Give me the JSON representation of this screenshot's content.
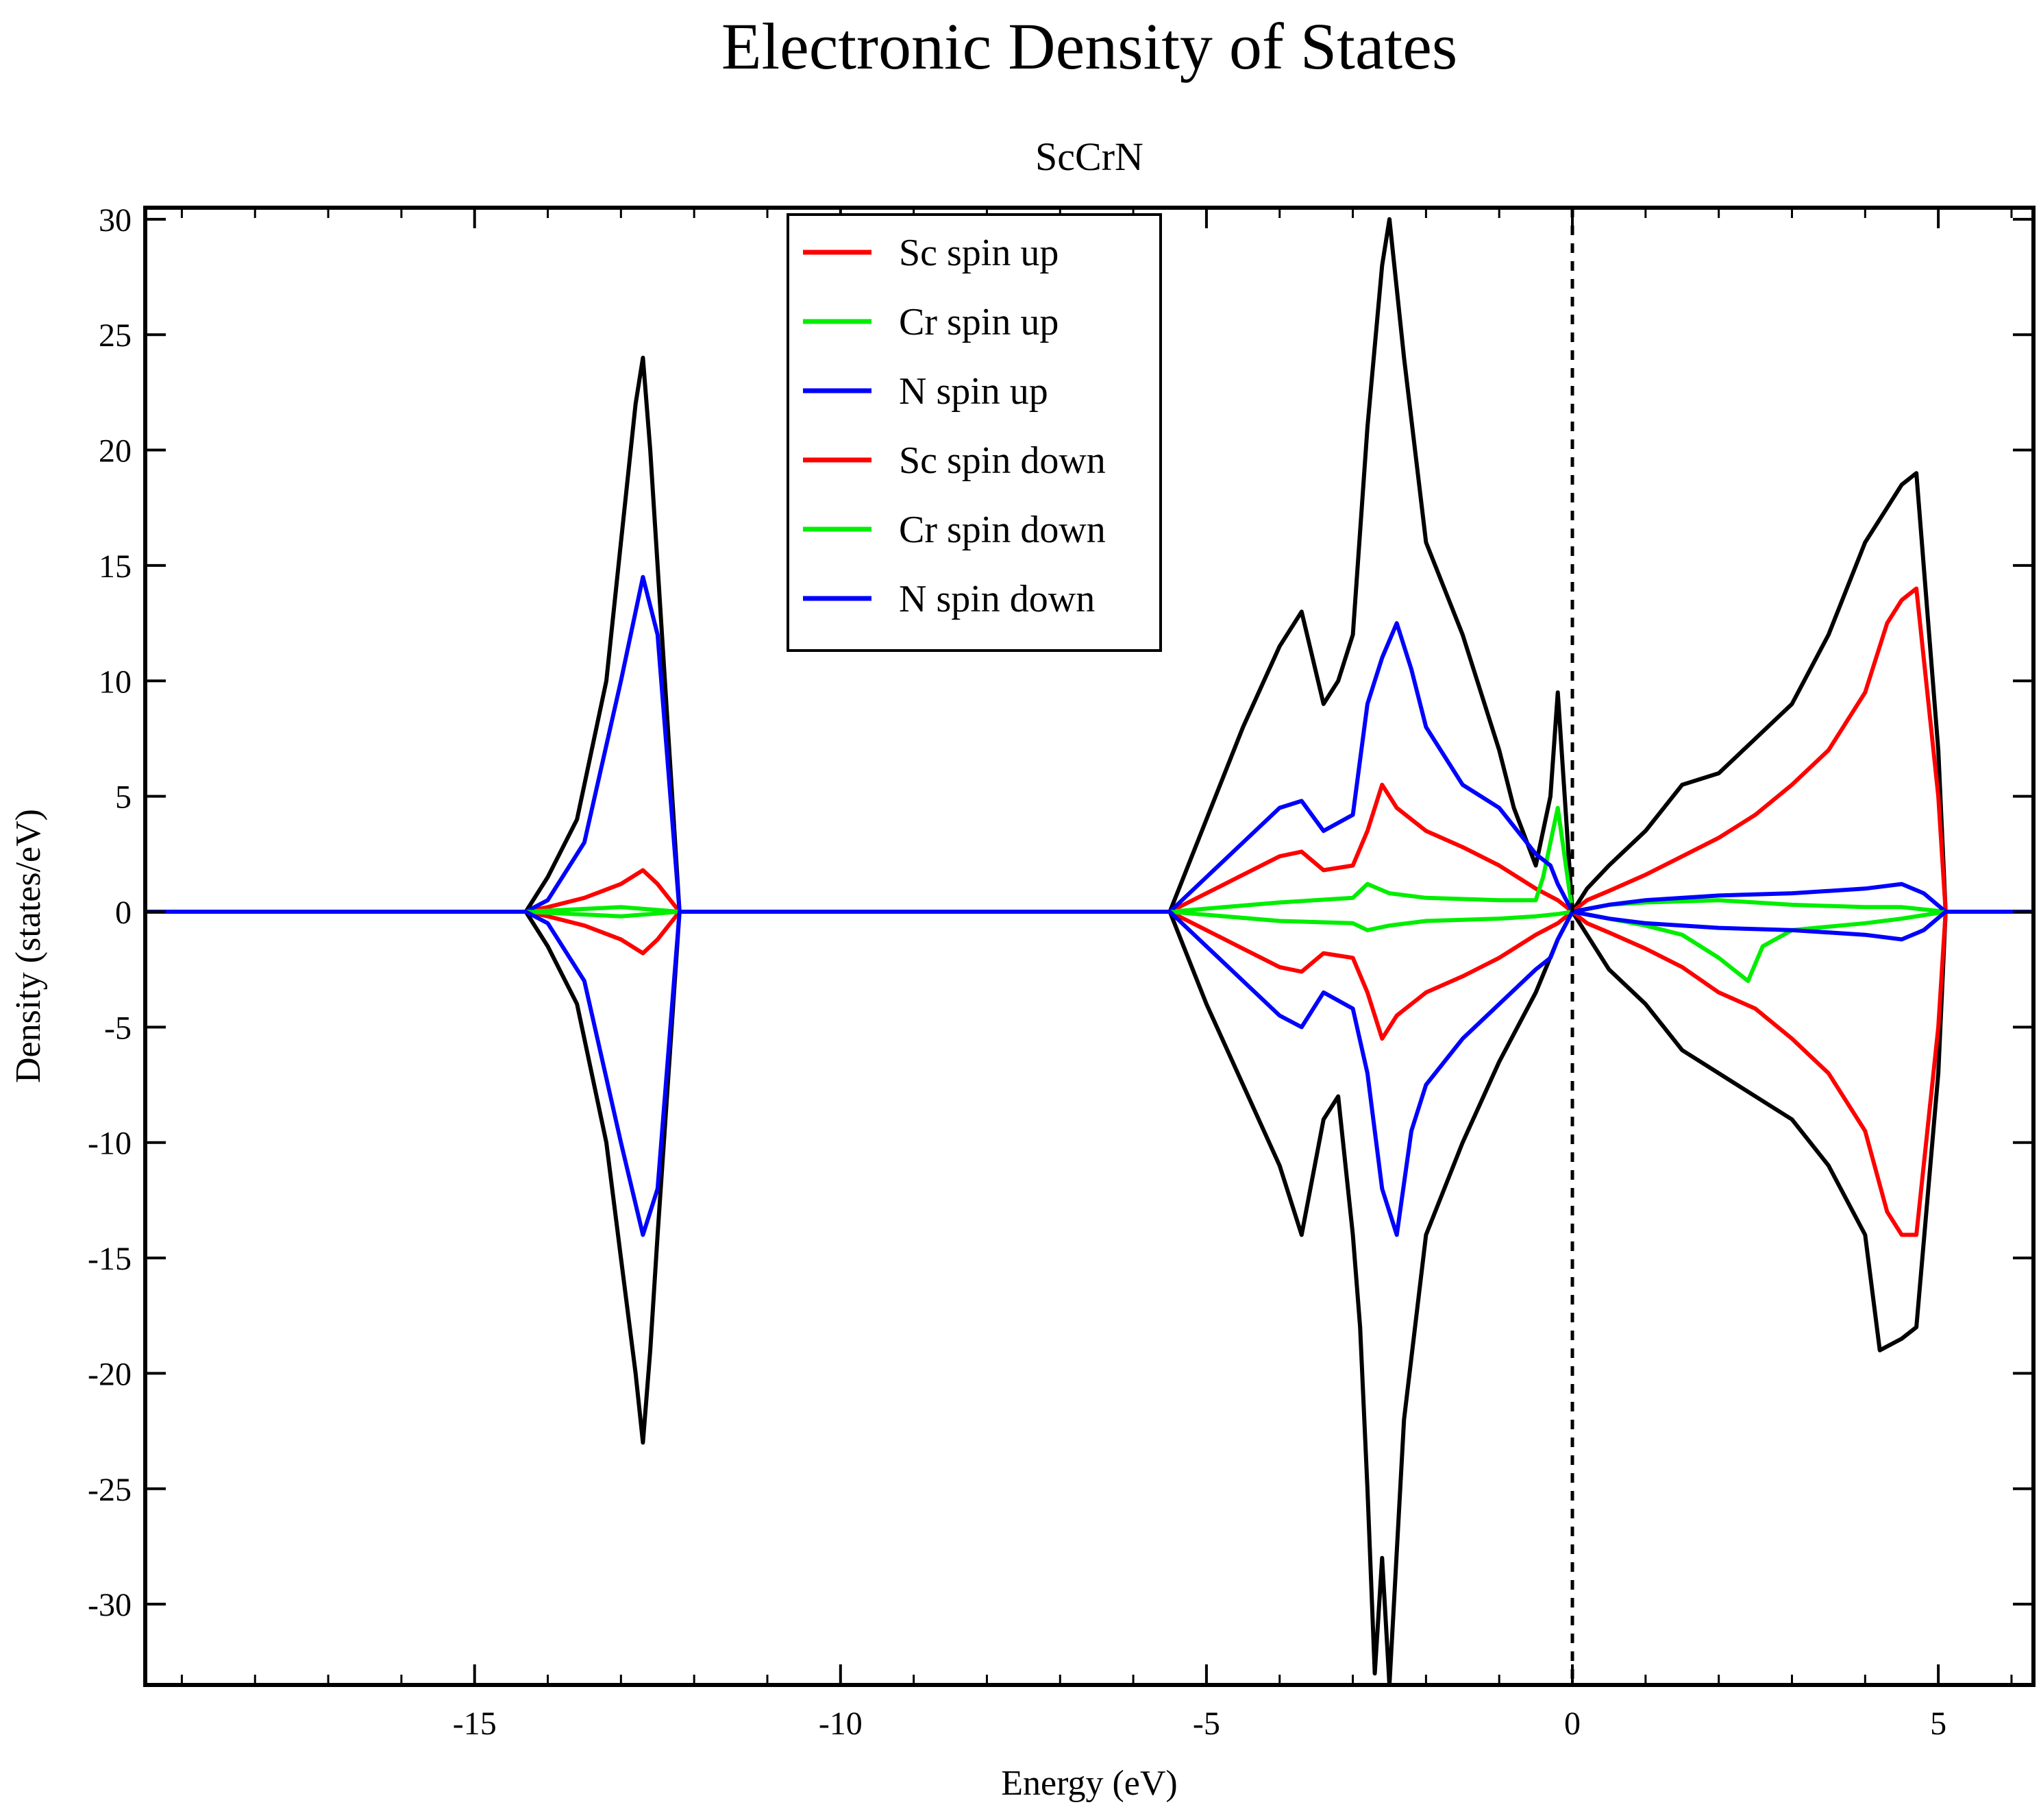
{
  "chart_data": {
    "type": "line",
    "title": "Electronic Density of States",
    "subtitle": "ScCrN",
    "xlabel": "Energy (eV)",
    "ylabel": "Density (states/eV)",
    "xlim": [
      -19.5,
      6.3
    ],
    "ylim": [
      -33.5,
      30.5
    ],
    "xticks": [
      -15,
      -10,
      -5,
      0,
      5
    ],
    "xtick_labels": [
      "-15",
      "-10",
      "-5",
      "0",
      "5"
    ],
    "yticks": [
      30,
      25,
      20,
      15,
      10,
      5,
      0,
      -5,
      -10,
      -15,
      -20,
      -25,
      -30
    ],
    "ytick_labels": [
      "30",
      "25",
      "20",
      "15",
      "10",
      "5",
      "0",
      "-5",
      "-10",
      "-15",
      "-20",
      "-25",
      "-30"
    ],
    "fermi_level": 0,
    "grid": false,
    "legend_position": "top-center",
    "total_color": "#000000",
    "series": [
      {
        "name": "Sc spin up",
        "color": "#ff0000",
        "x": [
          -19.5,
          -14.3,
          -14.0,
          -13.5,
          -13.0,
          -12.7,
          -12.5,
          -12.2,
          -5.5,
          -5.0,
          -4.5,
          -4.0,
          -3.7,
          -3.4,
          -3.0,
          -2.8,
          -2.6,
          -2.4,
          -2.0,
          -1.5,
          -1.0,
          -0.5,
          -0.2,
          0.0,
          0.2,
          0.5,
          1.0,
          1.5,
          2.0,
          2.5,
          3.0,
          3.5,
          4.0,
          4.3,
          4.5,
          4.7,
          5.0,
          5.1,
          6.3
        ],
        "values": [
          0,
          0,
          0.2,
          0.6,
          1.2,
          1.8,
          1.2,
          0,
          0,
          0.8,
          1.6,
          2.4,
          2.6,
          1.8,
          2.0,
          3.5,
          5.5,
          4.5,
          3.5,
          2.8,
          2.0,
          1.0,
          0.5,
          0,
          0.5,
          0.9,
          1.6,
          2.4,
          3.2,
          4.2,
          5.5,
          7.0,
          9.5,
          12.5,
          13.5,
          14.0,
          5.0,
          0,
          0
        ]
      },
      {
        "name": "Cr spin up",
        "color": "#00ee00",
        "x": [
          -19.5,
          -14.3,
          -13.0,
          -12.2,
          -5.5,
          -4.0,
          -3.0,
          -2.8,
          -2.5,
          -2.0,
          -1.0,
          -0.5,
          -0.4,
          -0.3,
          -0.2,
          0.0,
          0.5,
          1.0,
          2.0,
          2.5,
          3.0,
          4.0,
          4.5,
          5.1,
          6.3
        ],
        "values": [
          0,
          0,
          0.2,
          0,
          0,
          0.4,
          0.6,
          1.2,
          0.8,
          0.6,
          0.5,
          0.5,
          1.5,
          3.0,
          4.5,
          0,
          0.3,
          0.4,
          0.5,
          0.4,
          0.3,
          0.2,
          0.2,
          0,
          0
        ]
      },
      {
        "name": "N spin up",
        "color": "#0000ff",
        "x": [
          -19.5,
          -14.3,
          -14.0,
          -13.5,
          -13.0,
          -12.7,
          -12.5,
          -12.2,
          -5.5,
          -5.0,
          -4.5,
          -4.0,
          -3.7,
          -3.4,
          -3.0,
          -2.8,
          -2.6,
          -2.4,
          -2.2,
          -2.0,
          -1.5,
          -1.0,
          -0.5,
          -0.3,
          -0.2,
          0.0,
          0.5,
          1.0,
          2.0,
          3.0,
          4.0,
          4.5,
          4.8,
          5.1,
          6.3
        ],
        "values": [
          0,
          0,
          0.5,
          3.0,
          10.0,
          14.5,
          12.0,
          0,
          0,
          1.5,
          3.0,
          4.5,
          4.8,
          3.5,
          4.2,
          9.0,
          11.0,
          12.5,
          10.5,
          8.0,
          5.5,
          4.5,
          2.5,
          2.0,
          1.2,
          0,
          0.3,
          0.5,
          0.7,
          0.8,
          1.0,
          1.2,
          0.8,
          0,
          0
        ]
      },
      {
        "name": "Sc spin down",
        "color": "#ff0000",
        "x": [
          -19.5,
          -14.3,
          -14.0,
          -13.5,
          -13.0,
          -12.7,
          -12.5,
          -12.2,
          -5.5,
          -5.0,
          -4.5,
          -4.0,
          -3.7,
          -3.4,
          -3.0,
          -2.8,
          -2.6,
          -2.4,
          -2.0,
          -1.5,
          -1.0,
          -0.5,
          -0.2,
          0.0,
          0.2,
          0.5,
          1.0,
          1.5,
          2.0,
          2.5,
          3.0,
          3.5,
          4.0,
          4.3,
          4.5,
          4.7,
          5.0,
          5.1,
          6.3
        ],
        "values": [
          0,
          0,
          -0.2,
          -0.6,
          -1.2,
          -1.8,
          -1.2,
          0,
          0,
          -0.8,
          -1.6,
          -2.4,
          -2.6,
          -1.8,
          -2.0,
          -3.5,
          -5.5,
          -4.5,
          -3.5,
          -2.8,
          -2.0,
          -1.0,
          -0.5,
          0,
          -0.5,
          -0.9,
          -1.6,
          -2.4,
          -3.5,
          -4.2,
          -5.5,
          -7.0,
          -9.5,
          -13.0,
          -14.0,
          -14.0,
          -5.0,
          0,
          0
        ]
      },
      {
        "name": "Cr spin down",
        "color": "#00ee00",
        "x": [
          -19.5,
          -14.3,
          -13.0,
          -12.2,
          -5.5,
          -4.0,
          -3.0,
          -2.8,
          -2.5,
          -2.0,
          -1.0,
          -0.5,
          -0.2,
          0.0,
          0.5,
          1.0,
          1.5,
          2.0,
          2.2,
          2.4,
          2.6,
          3.0,
          4.0,
          4.5,
          5.1,
          6.3
        ],
        "values": [
          0,
          0,
          -0.2,
          0,
          0,
          -0.4,
          -0.5,
          -0.8,
          -0.6,
          -0.4,
          -0.3,
          -0.2,
          -0.1,
          0,
          -0.3,
          -0.6,
          -1.0,
          -2.0,
          -2.5,
          -3.0,
          -1.5,
          -0.8,
          -0.5,
          -0.3,
          0,
          0
        ]
      },
      {
        "name": "N spin down",
        "color": "#0000ff",
        "x": [
          -19.5,
          -14.3,
          -14.0,
          -13.5,
          -13.0,
          -12.7,
          -12.5,
          -12.2,
          -5.5,
          -5.0,
          -4.5,
          -4.0,
          -3.7,
          -3.4,
          -3.0,
          -2.8,
          -2.6,
          -2.4,
          -2.2,
          -2.0,
          -1.5,
          -1.0,
          -0.5,
          -0.3,
          -0.2,
          0.0,
          0.5,
          1.0,
          2.0,
          3.0,
          4.0,
          4.5,
          4.8,
          5.1,
          6.3
        ],
        "values": [
          0,
          0,
          -0.5,
          -3.0,
          -10.0,
          -14.0,
          -12.0,
          0,
          0,
          -1.5,
          -3.0,
          -4.5,
          -5.0,
          -3.5,
          -4.2,
          -7.0,
          -12.0,
          -14.0,
          -9.5,
          -7.5,
          -5.5,
          -4.0,
          -2.5,
          -2.0,
          -1.2,
          0,
          -0.3,
          -0.5,
          -0.7,
          -0.8,
          -1.0,
          -1.2,
          -0.8,
          0,
          0
        ]
      },
      {
        "name": "",
        "color": "#000000",
        "x": [
          -19.5,
          -14.3,
          -14.0,
          -13.6,
          -13.2,
          -13.0,
          -12.8,
          -12.7,
          -12.6,
          -12.5,
          -12.2,
          -5.5,
          -5.0,
          -4.5,
          -4.0,
          -3.7,
          -3.4,
          -3.2,
          -3.0,
          -2.8,
          -2.6,
          -2.5,
          -2.3,
          -2.0,
          -1.5,
          -1.0,
          -0.8,
          -0.5,
          -0.3,
          -0.2,
          0.0,
          0.2,
          0.5,
          1.0,
          1.5,
          2.0,
          2.5,
          3.0,
          3.5,
          4.0,
          4.3,
          4.5,
          4.7,
          5.0,
          5.1,
          6.3
        ],
        "values": [
          0,
          0,
          1.5,
          4.0,
          10.0,
          16.0,
          22.0,
          24.0,
          20.0,
          15.0,
          0,
          0,
          4.0,
          8.0,
          11.5,
          13.0,
          9.0,
          10.0,
          12.0,
          21.0,
          28.0,
          30.0,
          24.0,
          16.0,
          12.0,
          7.0,
          4.5,
          2.0,
          5.0,
          9.5,
          0,
          1.0,
          2.0,
          3.5,
          5.5,
          6.0,
          7.5,
          9.0,
          12.0,
          16.0,
          17.5,
          18.5,
          19.0,
          7.0,
          0,
          0
        ]
      },
      {
        "name": "",
        "color": "#000000",
        "x": [
          -19.5,
          -14.3,
          -14.0,
          -13.6,
          -13.2,
          -13.0,
          -12.8,
          -12.7,
          -12.6,
          -12.5,
          -12.2,
          -5.5,
          -5.0,
          -4.5,
          -4.0,
          -3.7,
          -3.4,
          -3.2,
          -3.0,
          -2.9,
          -2.8,
          -2.7,
          -2.6,
          -2.5,
          -2.3,
          -2.0,
          -1.5,
          -1.0,
          -0.5,
          -0.2,
          0.0,
          0.2,
          0.5,
          1.0,
          1.5,
          2.0,
          2.5,
          3.0,
          3.5,
          4.0,
          4.2,
          4.5,
          4.7,
          5.0,
          5.1,
          6.3
        ],
        "values": [
          0,
          0,
          -1.5,
          -4.0,
          -10.0,
          -15.0,
          -20.0,
          -23.0,
          -19.0,
          -14.0,
          0,
          0,
          -4.0,
          -7.5,
          -11.0,
          -14.0,
          -9.0,
          -8.0,
          -14.0,
          -18.0,
          -25.0,
          -33.0,
          -28.0,
          -33.5,
          -22.0,
          -14.0,
          -10.0,
          -6.5,
          -3.5,
          -1.2,
          0,
          -1.0,
          -2.5,
          -4.0,
          -6.0,
          -7.0,
          -8.0,
          -9.0,
          -11.0,
          -14.0,
          -19.0,
          -18.5,
          -18.0,
          -7.0,
          0,
          0
        ]
      }
    ]
  }
}
